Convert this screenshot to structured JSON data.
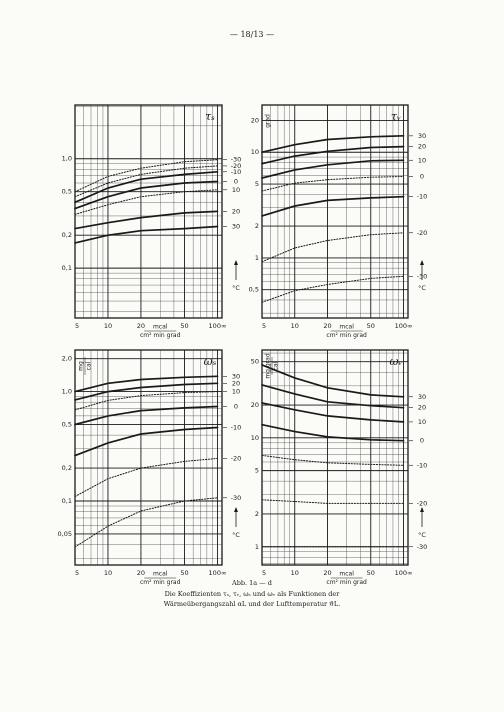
{
  "page_number": "— 18/13 —",
  "caption": {
    "title": "Abb. 1a — d",
    "lines": [
      "Die Koeffizienten τₛ, τᵥ, ωₛ und ωᵥ als Funktionen der",
      "Wärmeübergangszahl αL und der Lufttemperatur ϑL."
    ]
  },
  "chart_data": [
    {
      "type": "line",
      "label": "τₛ",
      "log_x": true,
      "log_y": true,
      "grid": true,
      "color": "#1a1a1a",
      "temp_unit": "°C",
      "xlabel": {
        "numerator": "mcal",
        "denominator": "cm² min grad"
      },
      "x": [
        5,
        10,
        20,
        50,
        100
      ],
      "xlim": [
        5,
        110
      ],
      "xticks": [
        5,
        10,
        20,
        50,
        {
          "value": 100,
          "label": "100∞"
        }
      ],
      "xminor": [
        6,
        7,
        8,
        9,
        30,
        40,
        60,
        70,
        80,
        90
      ],
      "ylim": [
        0.035,
        3.1
      ],
      "yticks": [
        {
          "value": 0.1,
          "label": "0,1"
        },
        {
          "value": 0.2,
          "label": "0,2"
        },
        {
          "value": 0.5,
          "label": "0,5"
        },
        {
          "value": 1,
          "label": "1,0"
        }
      ],
      "yminor": [
        0.04,
        0.05,
        0.06,
        0.07,
        0.08,
        0.09,
        0.3,
        0.4,
        0.6,
        0.7,
        0.8,
        0.9,
        2,
        3
      ],
      "series": [
        {
          "name": "-30",
          "style": "dotted",
          "values": [
            0.5,
            0.69,
            0.82,
            0.94,
            0.98
          ]
        },
        {
          "name": "-20",
          "style": "dotted",
          "values": [
            0.45,
            0.6,
            0.72,
            0.82,
            0.86
          ]
        },
        {
          "name": "-10",
          "style": "solid",
          "values": [
            0.4,
            0.54,
            0.65,
            0.72,
            0.76
          ]
        },
        {
          "name": "0",
          "style": "solid",
          "values": [
            0.35,
            0.45,
            0.54,
            0.6,
            0.62
          ]
        },
        {
          "name": "10",
          "style": "dotted",
          "values": [
            0.31,
            0.38,
            0.45,
            0.5,
            0.52
          ]
        },
        {
          "name": "20",
          "style": "solid",
          "values": [
            0.23,
            0.26,
            0.29,
            0.32,
            0.33
          ]
        },
        {
          "name": "30",
          "style": "solid",
          "values": [
            0.17,
            0.2,
            0.22,
            0.23,
            0.24
          ]
        }
      ]
    },
    {
      "type": "line",
      "label": "τᵥ",
      "log_x": true,
      "log_y": true,
      "grid": true,
      "color": "#1a1a1a",
      "temp_unit": "°C",
      "ylabel": {
        "numerator": "grad"
      },
      "xlabel": {
        "numerator": "mcal",
        "denominator": "cm² min grad"
      },
      "x": [
        5,
        10,
        20,
        50,
        100
      ],
      "xlim": [
        5,
        110
      ],
      "xticks": [
        5,
        10,
        20,
        50,
        {
          "value": 100,
          "label": "100∞"
        }
      ],
      "xminor": [
        6,
        7,
        8,
        9,
        30,
        40,
        60,
        70,
        80,
        90
      ],
      "ylim": [
        0.27,
        28
      ],
      "yticks": [
        {
          "value": 0.5,
          "label": "0,5"
        },
        1,
        2,
        5,
        10,
        20
      ],
      "yminor": [
        0.3,
        0.4,
        0.6,
        0.7,
        0.8,
        0.9,
        3,
        4,
        6,
        7,
        8,
        9
      ],
      "series": [
        {
          "name": "30",
          "style": "solid",
          "values": [
            10,
            11.8,
            13.2,
            14,
            14.3
          ]
        },
        {
          "name": "20",
          "style": "solid",
          "values": [
            7.8,
            9.2,
            10.2,
            11.1,
            11.3
          ]
        },
        {
          "name": "10",
          "style": "solid",
          "values": [
            5.7,
            6.8,
            7.6,
            8.3,
            8.4
          ]
        },
        {
          "name": "0",
          "style": "dotted",
          "values": [
            4.3,
            5.1,
            5.5,
            5.8,
            5.9
          ]
        },
        {
          "name": "-10",
          "style": "solid",
          "values": [
            2.5,
            3.1,
            3.5,
            3.7,
            3.8
          ]
        },
        {
          "name": "-20",
          "style": "dotted",
          "values": [
            0.92,
            1.24,
            1.46,
            1.66,
            1.73
          ]
        },
        {
          "name": "-30",
          "style": "dotted",
          "values": [
            0.38,
            0.49,
            0.56,
            0.64,
            0.67
          ]
        }
      ]
    },
    {
      "type": "line",
      "label": "ωₛ",
      "log_x": true,
      "log_y": true,
      "grid": true,
      "color": "#1a1a1a",
      "temp_unit": "°C",
      "ylabel": {
        "numerator": "mg",
        "denominator": "cal"
      },
      "xlabel": {
        "numerator": "mcal",
        "denominator": "cm² min grad"
      },
      "x": [
        5,
        10,
        20,
        50,
        100
      ],
      "xlim": [
        5,
        110
      ],
      "xticks": [
        5,
        10,
        20,
        50,
        {
          "value": 100,
          "label": "100∞"
        }
      ],
      "xminor": [
        6,
        7,
        8,
        9,
        30,
        40,
        60,
        70,
        80,
        90
      ],
      "ylim": [
        0.026,
        2.4
      ],
      "yticks": [
        {
          "value": 0.05,
          "label": "0,05"
        },
        {
          "value": 0.1,
          "label": "0,1"
        },
        {
          "value": 0.2,
          "label": "0,2"
        },
        {
          "value": 0.5,
          "label": "0,5"
        },
        {
          "value": 1,
          "label": "1,0"
        },
        {
          "value": 2,
          "label": "2,0"
        }
      ],
      "yminor": [
        0.03,
        0.04,
        0.06,
        0.07,
        0.08,
        0.09,
        0.3,
        0.4,
        0.6,
        0.7,
        0.8,
        0.9
      ],
      "series": [
        {
          "name": "30",
          "style": "solid",
          "values": [
            1,
            1.19,
            1.29,
            1.35,
            1.38
          ]
        },
        {
          "name": "20",
          "style": "solid",
          "values": [
            0.84,
            1,
            1.09,
            1.16,
            1.19
          ]
        },
        {
          "name": "10",
          "style": "dotted",
          "values": [
            0.68,
            0.83,
            0.92,
            0.98,
            1
          ]
        },
        {
          "name": "0",
          "style": "solid",
          "values": [
            0.5,
            0.6,
            0.67,
            0.71,
            0.73
          ]
        },
        {
          "name": "-10",
          "style": "solid",
          "values": [
            0.26,
            0.34,
            0.41,
            0.45,
            0.47
          ]
        },
        {
          "name": "-20",
          "style": "dotted",
          "values": [
            0.11,
            0.16,
            0.2,
            0.23,
            0.245
          ]
        },
        {
          "name": "-30",
          "style": "dotted",
          "values": [
            0.038,
            0.059,
            0.081,
            0.1,
            0.107
          ]
        }
      ]
    },
    {
      "type": "line",
      "label": "ωᵥ",
      "log_x": true,
      "log_y": true,
      "grid": true,
      "color": "#1a1a1a",
      "temp_unit": "°C",
      "ylabel": {
        "numerator": "mg grad",
        "denominator": "cal"
      },
      "xlabel": {
        "numerator": "mcal",
        "denominator": "cm² min grad"
      },
      "x": [
        5,
        10,
        20,
        50,
        100
      ],
      "xlim": [
        5,
        110
      ],
      "xticks": [
        5,
        10,
        20,
        50,
        {
          "value": 100,
          "label": "100∞"
        }
      ],
      "xminor": [
        6,
        7,
        8,
        9,
        30,
        40,
        60,
        70,
        80,
        90
      ],
      "ylim": [
        0.68,
        64
      ],
      "yticks": [
        1,
        2,
        5,
        10,
        20,
        50
      ],
      "yminor": [
        0.7,
        0.8,
        0.9,
        3,
        4,
        6,
        7,
        8,
        9,
        30,
        40,
        60
      ],
      "series": [
        {
          "name": "30",
          "style": "solid",
          "values": [
            46.7,
            35.5,
            28.8,
            24.8,
            23.8
          ]
        },
        {
          "name": "20",
          "style": "solid",
          "values": [
            30.6,
            25.3,
            21.4,
            19.7,
            18.9
          ]
        },
        {
          "name": "10",
          "style": "solid",
          "values": [
            20.9,
            18.1,
            15.9,
            14.6,
            14
          ]
        },
        {
          "name": "0",
          "style": "solid",
          "values": [
            13.2,
            11.4,
            10.2,
            9.6,
            9.4
          ]
        },
        {
          "name": "-10",
          "style": "dotted",
          "values": [
            6.9,
            6.3,
            5.9,
            5.7,
            5.6
          ]
        },
        {
          "name": "-20",
          "style": "dotted",
          "values": [
            2.7,
            2.6,
            2.5,
            2.5,
            2.5
          ]
        },
        {
          "name": "-30",
          "style": "dotted",
          "values": [
            1,
            1,
            1,
            1,
            1
          ]
        }
      ]
    }
  ]
}
